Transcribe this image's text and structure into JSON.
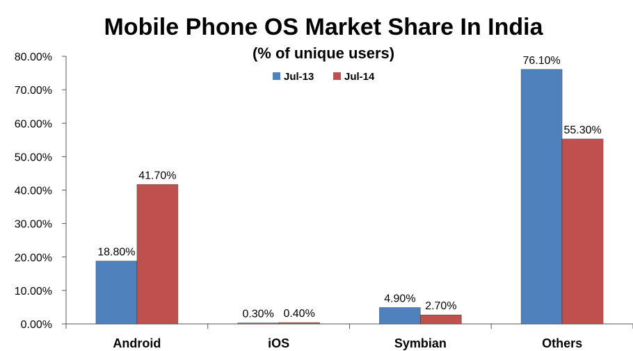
{
  "chart_data": {
    "type": "bar",
    "title": "Mobile Phone OS Market Share In India",
    "subtitle": "(% of unique users)",
    "categories": [
      "Android",
      "iOS",
      "Symbian",
      "Others"
    ],
    "series": [
      {
        "name": "Jul-13",
        "color": "#4f81bd",
        "values": [
          18.8,
          0.3,
          4.9,
          76.1
        ],
        "labels": [
          "18.80%",
          "0.30%",
          "4.90%",
          "76.10%"
        ]
      },
      {
        "name": "Jul-14",
        "color": "#c0504d",
        "values": [
          41.7,
          0.4,
          2.7,
          55.3
        ],
        "labels": [
          "41.70%",
          "0.40%",
          "2.70%",
          "55.30%"
        ]
      }
    ],
    "ylim": [
      0,
      80
    ],
    "yticks": [
      0,
      10,
      20,
      30,
      40,
      50,
      60,
      70,
      80
    ],
    "ytick_labels": [
      "0.00%",
      "10.00%",
      "20.00%",
      "30.00%",
      "40.00%",
      "50.00%",
      "60.00%",
      "70.00%",
      "80.00%"
    ],
    "legend_position": "top-center",
    "grid": false
  }
}
